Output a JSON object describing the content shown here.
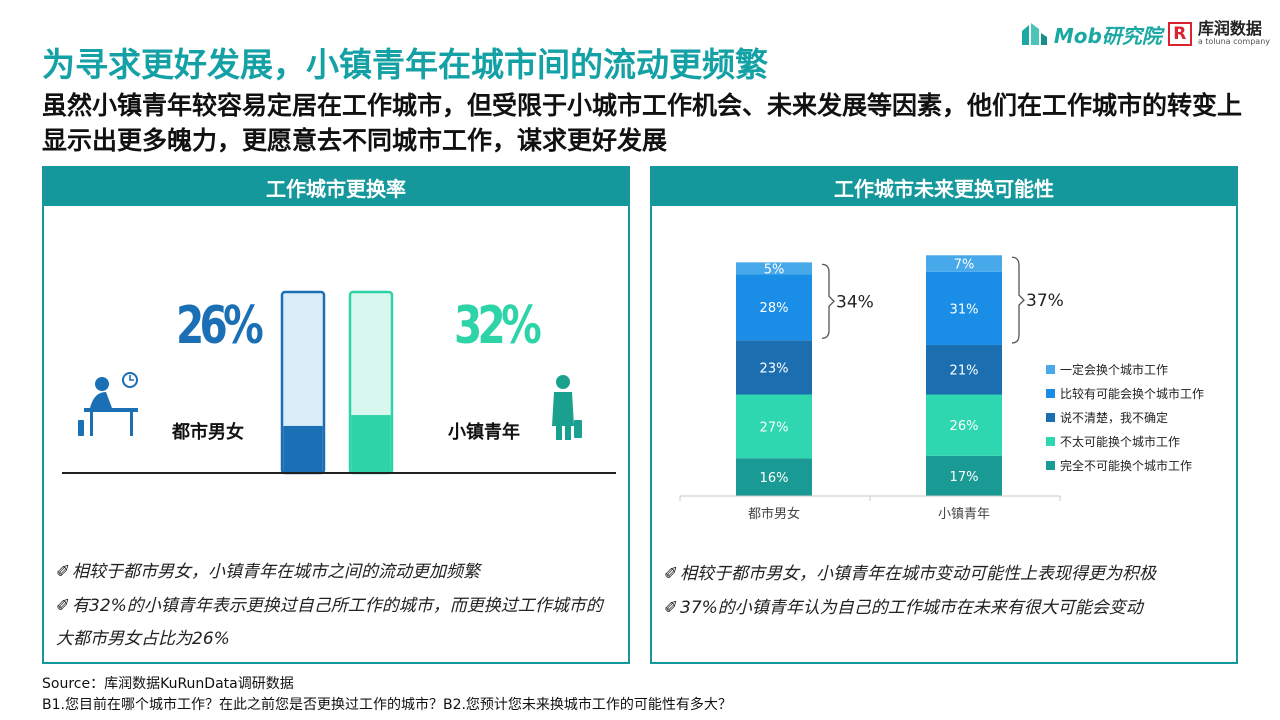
{
  "header": {
    "title": "为寻求更好发展，小镇青年在城市间的流动更频繁",
    "subtitle": "虽然小镇青年较容易定居在工作城市，但受限于小城市工作机会、未来发展等因素，他们在工作城市的转变上显示出更多魄力，更愿意去不同城市工作，谋求更好发展"
  },
  "logos": {
    "mob": "Mob研究院",
    "kurun_mark": "R",
    "kurun_name": "库润数据",
    "kurun_sub": "a toluna company"
  },
  "left_panel": {
    "title": "工作城市更换率",
    "groups": [
      {
        "label": "都市男女",
        "pct": "26%",
        "value": 26,
        "color": "#1a6fb5",
        "light": "#dcedfa"
      },
      {
        "label": "小镇青年",
        "pct": "32%",
        "value": 32,
        "color": "#2ed3a8",
        "light": "#d8f7ef"
      }
    ],
    "notes": [
      "相较于都市男女，小镇青年在城市之间的流动更加频繁",
      "有32%的小镇青年表示更换过自己所工作的城市，而更换过工作城市的大都市男女占比为26%"
    ],
    "note_icon": "✐"
  },
  "right_panel": {
    "title": "工作城市未来更换可能性",
    "notes": [
      "相较于都市男女，小镇青年在城市变动可能性上表现得更为积极",
      "37%的小镇青年认为自己的工作城市在未来有很大可能会变动"
    ],
    "note_icon": "✐"
  },
  "chart_data": [
    {
      "type": "bar",
      "categories": [
        "都市男女",
        "小镇青年"
      ],
      "values": [
        26,
        32
      ],
      "unit": "%",
      "colors": [
        "#1a6fb5",
        "#2ed3a8"
      ]
    },
    {
      "type": "bar",
      "stacked": true,
      "categories": [
        "都市男女",
        "小镇青年"
      ],
      "series": [
        {
          "name": "完全不可能换个城市工作",
          "values": [
            16,
            17
          ],
          "color": "#1a9a94"
        },
        {
          "name": "不太可能换个城市工作",
          "values": [
            27,
            26
          ],
          "color": "#2ed7b0"
        },
        {
          "name": "说不清楚，我不确定",
          "values": [
            23,
            21
          ],
          "color": "#1b6fb0"
        },
        {
          "name": "比较有可能会换个城市工作",
          "values": [
            28,
            31
          ],
          "color": "#1a8de6"
        },
        {
          "name": "一定会换个城市工作",
          "values": [
            5,
            7
          ],
          "color": "#47a9ea"
        }
      ],
      "bracket_totals": [
        "34%",
        "37%"
      ],
      "legend": "right",
      "legend_order": [
        "一定会换个城市工作",
        "比较有可能会换个城市工作",
        "说不清楚，我不确定",
        "不太可能换个城市工作",
        "完全不可能换个城市工作"
      ]
    }
  ],
  "footer": {
    "source": "Source：库润数据KuRunData调研数据",
    "question": "B1.您目前在哪个城市工作？在此之前您是否更换过工作的城市？B2.您预计您未来换城市工作的可能性有多大？"
  }
}
